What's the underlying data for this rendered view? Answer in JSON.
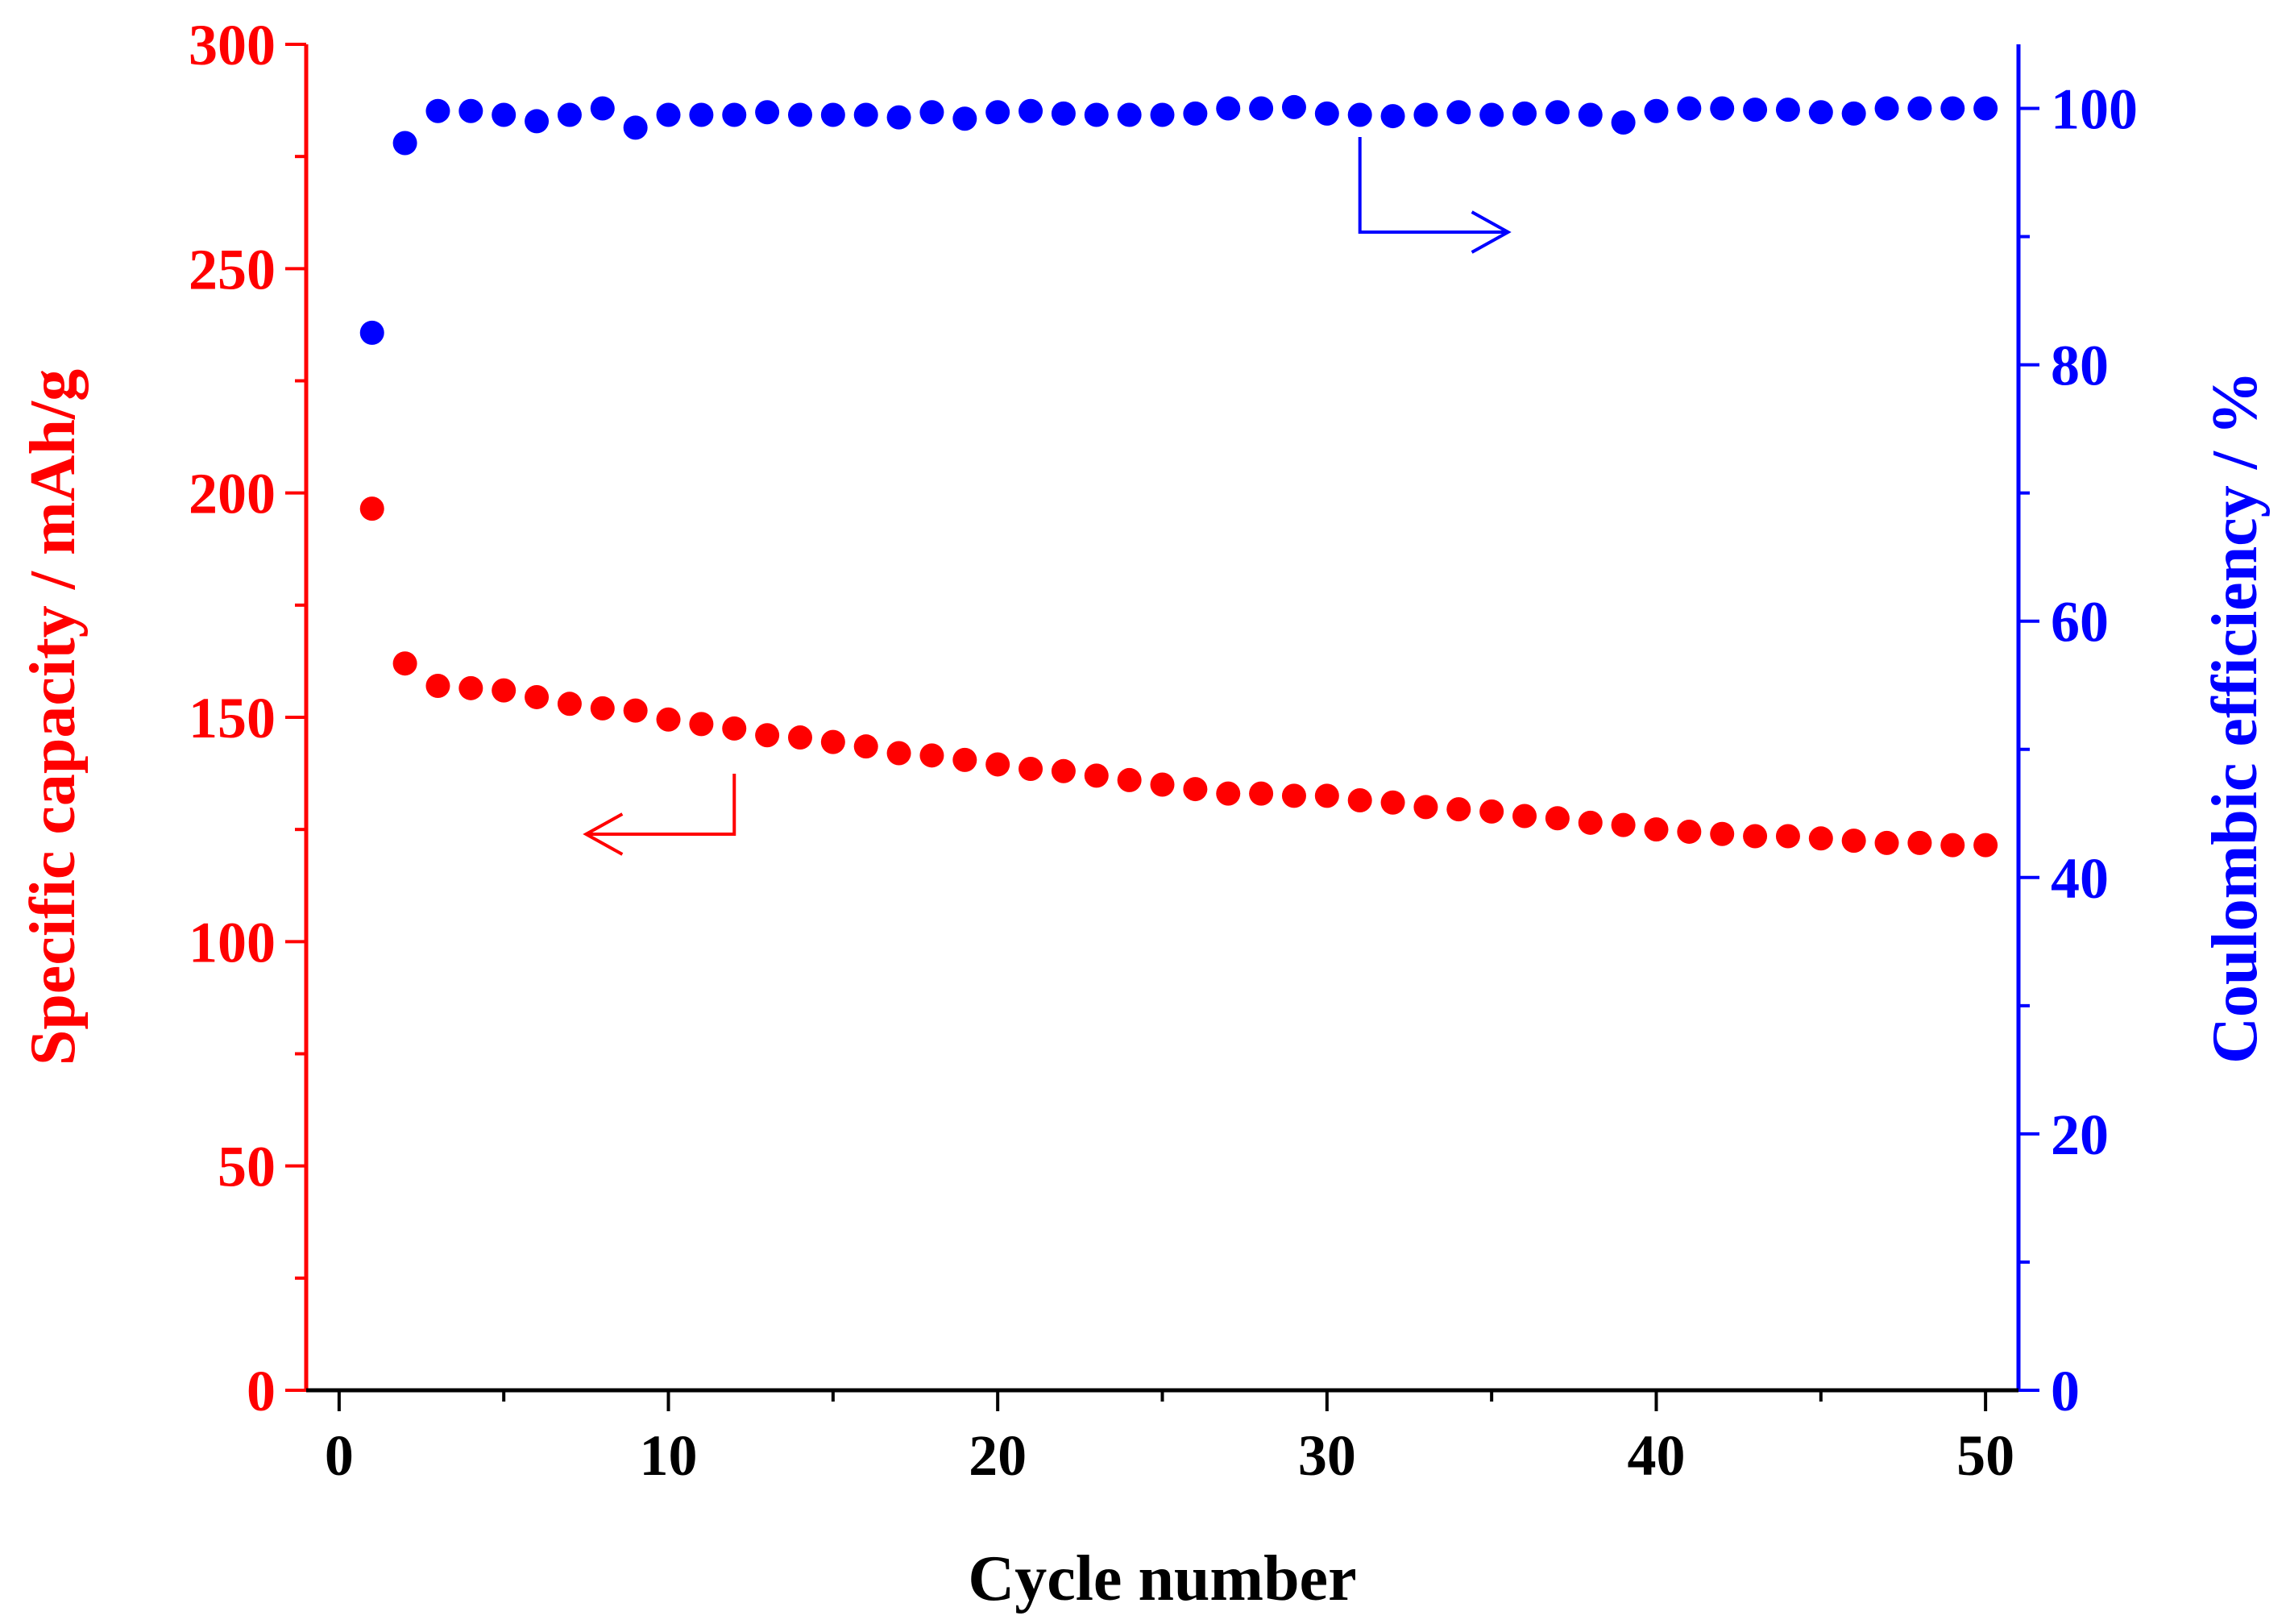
{
  "chart_data": {
    "type": "scatter",
    "xlabel": "Cycle number",
    "ylabel_left": "Specific capacity / mAh/g",
    "ylabel_right": "Coulombic efficiency / %",
    "xlim": [
      -1,
      51
    ],
    "xticks": [
      0,
      10,
      20,
      30,
      40,
      50
    ],
    "ylim_left": [
      0,
      300
    ],
    "yticks_left": [
      0,
      50,
      100,
      150,
      200,
      250,
      300
    ],
    "ylim_right": [
      0,
      105
    ],
    "yticks_right": [
      0,
      20,
      40,
      60,
      80,
      100
    ],
    "grid": false,
    "colors": {
      "capacity": "#ff0000",
      "efficiency": "#0000ff",
      "xaxis": "#000000"
    },
    "series": [
      {
        "name": "Specific capacity",
        "axis": "left",
        "x": [
          1,
          2,
          3,
          4,
          5,
          6,
          7,
          8,
          9,
          10,
          11,
          12,
          13,
          14,
          15,
          16,
          17,
          18,
          19,
          20,
          21,
          22,
          23,
          24,
          25,
          26,
          27,
          28,
          29,
          30,
          31,
          32,
          33,
          34,
          35,
          36,
          37,
          38,
          39,
          40,
          41,
          42,
          43,
          44,
          45,
          46,
          47,
          48,
          49,
          50
        ],
        "values": [
          196.5,
          162,
          157,
          156.5,
          156,
          154.5,
          153,
          152,
          151.5,
          149.5,
          148.5,
          147.5,
          146,
          145.5,
          144.5,
          143.5,
          142,
          141.5,
          140.5,
          139.5,
          138.5,
          138,
          137,
          136,
          135,
          134,
          133,
          133,
          132.5,
          132.5,
          131.5,
          131,
          130,
          129.5,
          129,
          128,
          127.5,
          126.5,
          126,
          125,
          124.5,
          124,
          123.5,
          123.5,
          123,
          122.5,
          122,
          122,
          121.5,
          121.5
        ]
      },
      {
        "name": "Coulombic efficiency",
        "axis": "right",
        "x": [
          1,
          2,
          3,
          4,
          5,
          6,
          7,
          8,
          9,
          10,
          11,
          12,
          13,
          14,
          15,
          16,
          17,
          18,
          19,
          20,
          21,
          22,
          23,
          24,
          25,
          26,
          27,
          28,
          29,
          30,
          31,
          32,
          33,
          34,
          35,
          36,
          37,
          38,
          39,
          40,
          41,
          42,
          43,
          44,
          45,
          46,
          47,
          48,
          49,
          50
        ],
        "values": [
          82.5,
          97.3,
          99.8,
          99.8,
          99.5,
          99,
          99.5,
          100,
          98.5,
          99.5,
          99.5,
          99.5,
          99.7,
          99.5,
          99.5,
          99.5,
          99.3,
          99.7,
          99.2,
          99.7,
          99.8,
          99.6,
          99.5,
          99.5,
          99.5,
          99.6,
          100,
          100,
          100.1,
          99.6,
          99.5,
          99.4,
          99.5,
          99.7,
          99.5,
          99.6,
          99.7,
          99.5,
          98.9,
          99.8,
          100,
          100,
          99.9,
          99.9,
          99.7,
          99.6,
          100,
          100,
          100,
          100
        ]
      }
    ],
    "annotations": [
      {
        "text": "",
        "target": "left-axis",
        "series": "Specific capacity",
        "arrow": "left"
      },
      {
        "text": "",
        "target": "right-axis",
        "series": "Coulombic efficiency",
        "arrow": "right"
      }
    ]
  }
}
